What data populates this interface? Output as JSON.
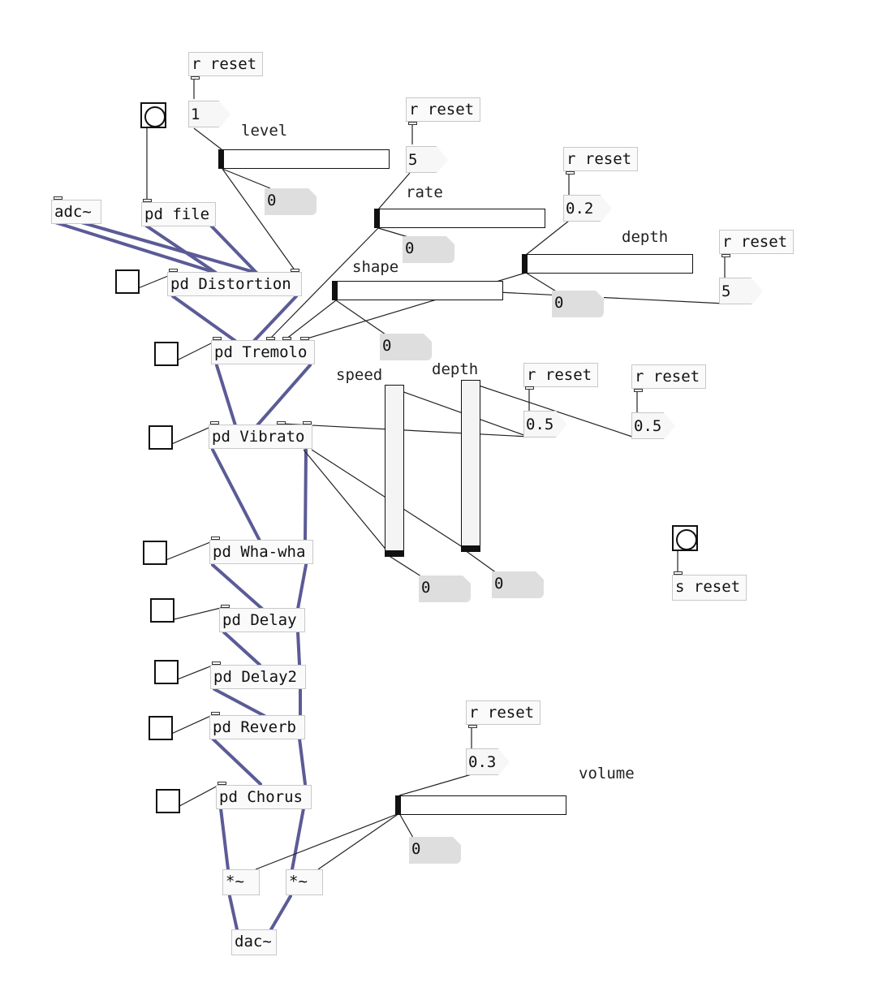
{
  "patch": {
    "objects": {
      "r_reset_1": "r reset",
      "r_reset_2": "r reset",
      "r_reset_3": "r reset",
      "r_reset_4": "r reset",
      "r_reset_5": "r reset",
      "r_reset_6": "r reset",
      "r_reset_7": "r reset",
      "adc": "adc~",
      "pd_file": "pd file",
      "pd_distortion": "pd Distortion",
      "pd_tremolo": "pd Tremolo",
      "pd_vibrato": "pd Vibrato",
      "pd_whawha": "pd Wha-wha",
      "pd_delay": "pd Delay",
      "pd_delay2": "pd Delay2",
      "pd_reverb": "pd Reverb",
      "pd_chorus": "pd Chorus",
      "mul_left": "*~",
      "mul_right": "*~",
      "dac": "dac~",
      "s_reset": "s reset"
    },
    "messages": {
      "level_init": "1",
      "rate_init": "5",
      "depth_init": "0.2",
      "shape_init": "5",
      "speed_init": "0.5",
      "vdepth_init": "0.5",
      "volume_init": "0.3"
    },
    "numboxes": {
      "level_out": "0",
      "rate_out": "0",
      "depth_out": "0",
      "shape_out": "0",
      "speed_out": "0",
      "vdepth_out": "0",
      "volume_out": "0"
    },
    "labels": {
      "level": "level",
      "rate": "rate",
      "depth": "depth",
      "shape": "shape",
      "speed": "speed",
      "vdepth": "depth",
      "volume": "volume"
    }
  },
  "colors": {
    "signal_wire": "#5b5b96",
    "control_wire": "#222222",
    "object_border": "#c8c8c8"
  }
}
